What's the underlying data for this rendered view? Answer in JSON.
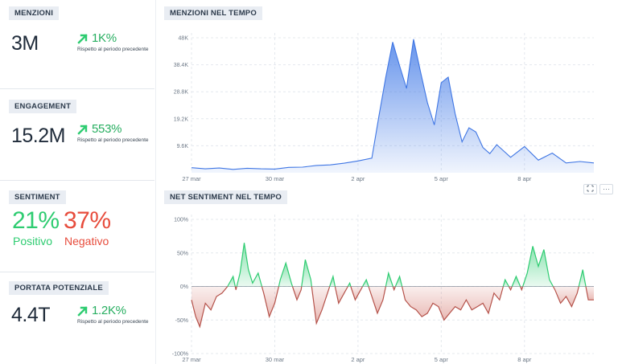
{
  "left_panel": {
    "mentions": {
      "title": "MENZIONI",
      "value": "3M",
      "delta": "1K%",
      "delta_label": "Rispetto al periodo precedente"
    },
    "engagement": {
      "title": "ENGAGEMENT",
      "value": "15.2M",
      "delta": "553%",
      "delta_label": "Rispetto al periodo precedente"
    },
    "sentiment": {
      "title": "SENTIMENT",
      "positive_value": "21%",
      "positive_label": "Positivo",
      "negative_value": "37%",
      "negative_label": "Negativo"
    },
    "reach": {
      "title": "PORTATA POTENZIALE",
      "value": "4.4T",
      "delta": "1.2K%",
      "delta_label": "Rispetto al periodo precedente"
    }
  },
  "mentions_chart": {
    "title": "MENZIONI NEL TEMPO"
  },
  "sentiment_chart": {
    "title": "NET SENTIMENT NEL TEMPO"
  },
  "toolbar": {
    "expand_icon": "expand-icon",
    "more_icon": "more-icon",
    "more_label": "···"
  },
  "colors": {
    "positive": "#2ecc71",
    "negative": "#e74c3c",
    "accent": "#4a80e8",
    "delta_up": "#27ae60"
  },
  "chart_data": [
    {
      "type": "area",
      "title": "MENZIONI NEL TEMPO",
      "x_ticks": [
        "27 mar",
        "30 mar",
        "2 apr",
        "5 apr",
        "8 apr"
      ],
      "x_tick_days": [
        0,
        3,
        6,
        9,
        12
      ],
      "y_ticks": [
        "9.6K",
        "19.2K",
        "28.8K",
        "38.4K",
        "48K"
      ],
      "y_tick_values": [
        9600,
        19200,
        28800,
        38400,
        48000
      ],
      "ylim": [
        0,
        48000
      ],
      "xlim": [
        0,
        14.5
      ],
      "grid": true,
      "series": [
        {
          "x": [
            0,
            0.5,
            1,
            1.5,
            2,
            2.5,
            3,
            3.5,
            4,
            4.5,
            5,
            5.5,
            6,
            6.5,
            6.75,
            7,
            7.25,
            7.5,
            7.75,
            8,
            8.25,
            8.5,
            8.75,
            9,
            9.25,
            9.5,
            9.75,
            10,
            10.25,
            10.5,
            10.75,
            11,
            11.5,
            12,
            12.5,
            13,
            13.5,
            14,
            14.5
          ],
          "y": [
            1800,
            1400,
            1700,
            1200,
            1600,
            1400,
            1300,
            1900,
            2000,
            2600,
            2800,
            3400,
            4200,
            5200,
            20000,
            34000,
            46500,
            38000,
            30000,
            47500,
            36000,
            25000,
            17000,
            32000,
            34000,
            21000,
            11000,
            16000,
            14500,
            9000,
            6800,
            10000,
            5500,
            9300,
            4500,
            7000,
            3500,
            4000,
            3500
          ]
        }
      ]
    },
    {
      "type": "area",
      "title": "NET SENTIMENT NEL TEMPO",
      "x_ticks": [
        "27 mar",
        "30 mar",
        "2 apr",
        "5 apr",
        "8 apr"
      ],
      "x_tick_days": [
        0,
        3,
        6,
        9,
        12
      ],
      "y_ticks": [
        "-100%",
        "-50%",
        "0%",
        "50%",
        "100%"
      ],
      "y_tick_values": [
        -100,
        -50,
        0,
        50,
        100
      ],
      "ylim": [
        -100,
        100
      ],
      "xlim": [
        0,
        14.5
      ],
      "grid": true,
      "series": [
        {
          "x": [
            0,
            0.15,
            0.3,
            0.5,
            0.7,
            0.9,
            1.1,
            1.3,
            1.5,
            1.6,
            1.75,
            1.9,
            2.05,
            2.2,
            2.4,
            2.6,
            2.8,
            3,
            3.2,
            3.4,
            3.6,
            3.8,
            3.95,
            4.1,
            4.3,
            4.5,
            4.7,
            4.9,
            5.1,
            5.3,
            5.5,
            5.7,
            5.9,
            6.1,
            6.3,
            6.5,
            6.7,
            6.9,
            7.1,
            7.3,
            7.5,
            7.7,
            7.9,
            8.1,
            8.3,
            8.5,
            8.7,
            8.9,
            9.1,
            9.3,
            9.5,
            9.7,
            9.9,
            10.1,
            10.3,
            10.5,
            10.7,
            10.9,
            11.1,
            11.3,
            11.5,
            11.7,
            11.9,
            12.1,
            12.3,
            12.5,
            12.7,
            12.9,
            13.1,
            13.3,
            13.5,
            13.7,
            13.9,
            14.1,
            14.3,
            14.5
          ],
          "y": [
            -20,
            -45,
            -60,
            -25,
            -35,
            -15,
            -10,
            0,
            15,
            -5,
            20,
            65,
            25,
            5,
            20,
            -10,
            -45,
            -25,
            10,
            35,
            5,
            -20,
            -5,
            40,
            10,
            -55,
            -35,
            -10,
            15,
            -25,
            -10,
            5,
            -20,
            -5,
            10,
            -15,
            -40,
            -20,
            20,
            -5,
            15,
            -20,
            -30,
            -35,
            -45,
            -40,
            -25,
            -30,
            -50,
            -40,
            -30,
            -35,
            -20,
            -35,
            -30,
            -25,
            -40,
            -10,
            -20,
            10,
            -5,
            15,
            -5,
            20,
            60,
            30,
            55,
            10,
            -5,
            -25,
            -15,
            -30,
            -10,
            25,
            -20,
            -20
          ]
        }
      ]
    }
  ]
}
